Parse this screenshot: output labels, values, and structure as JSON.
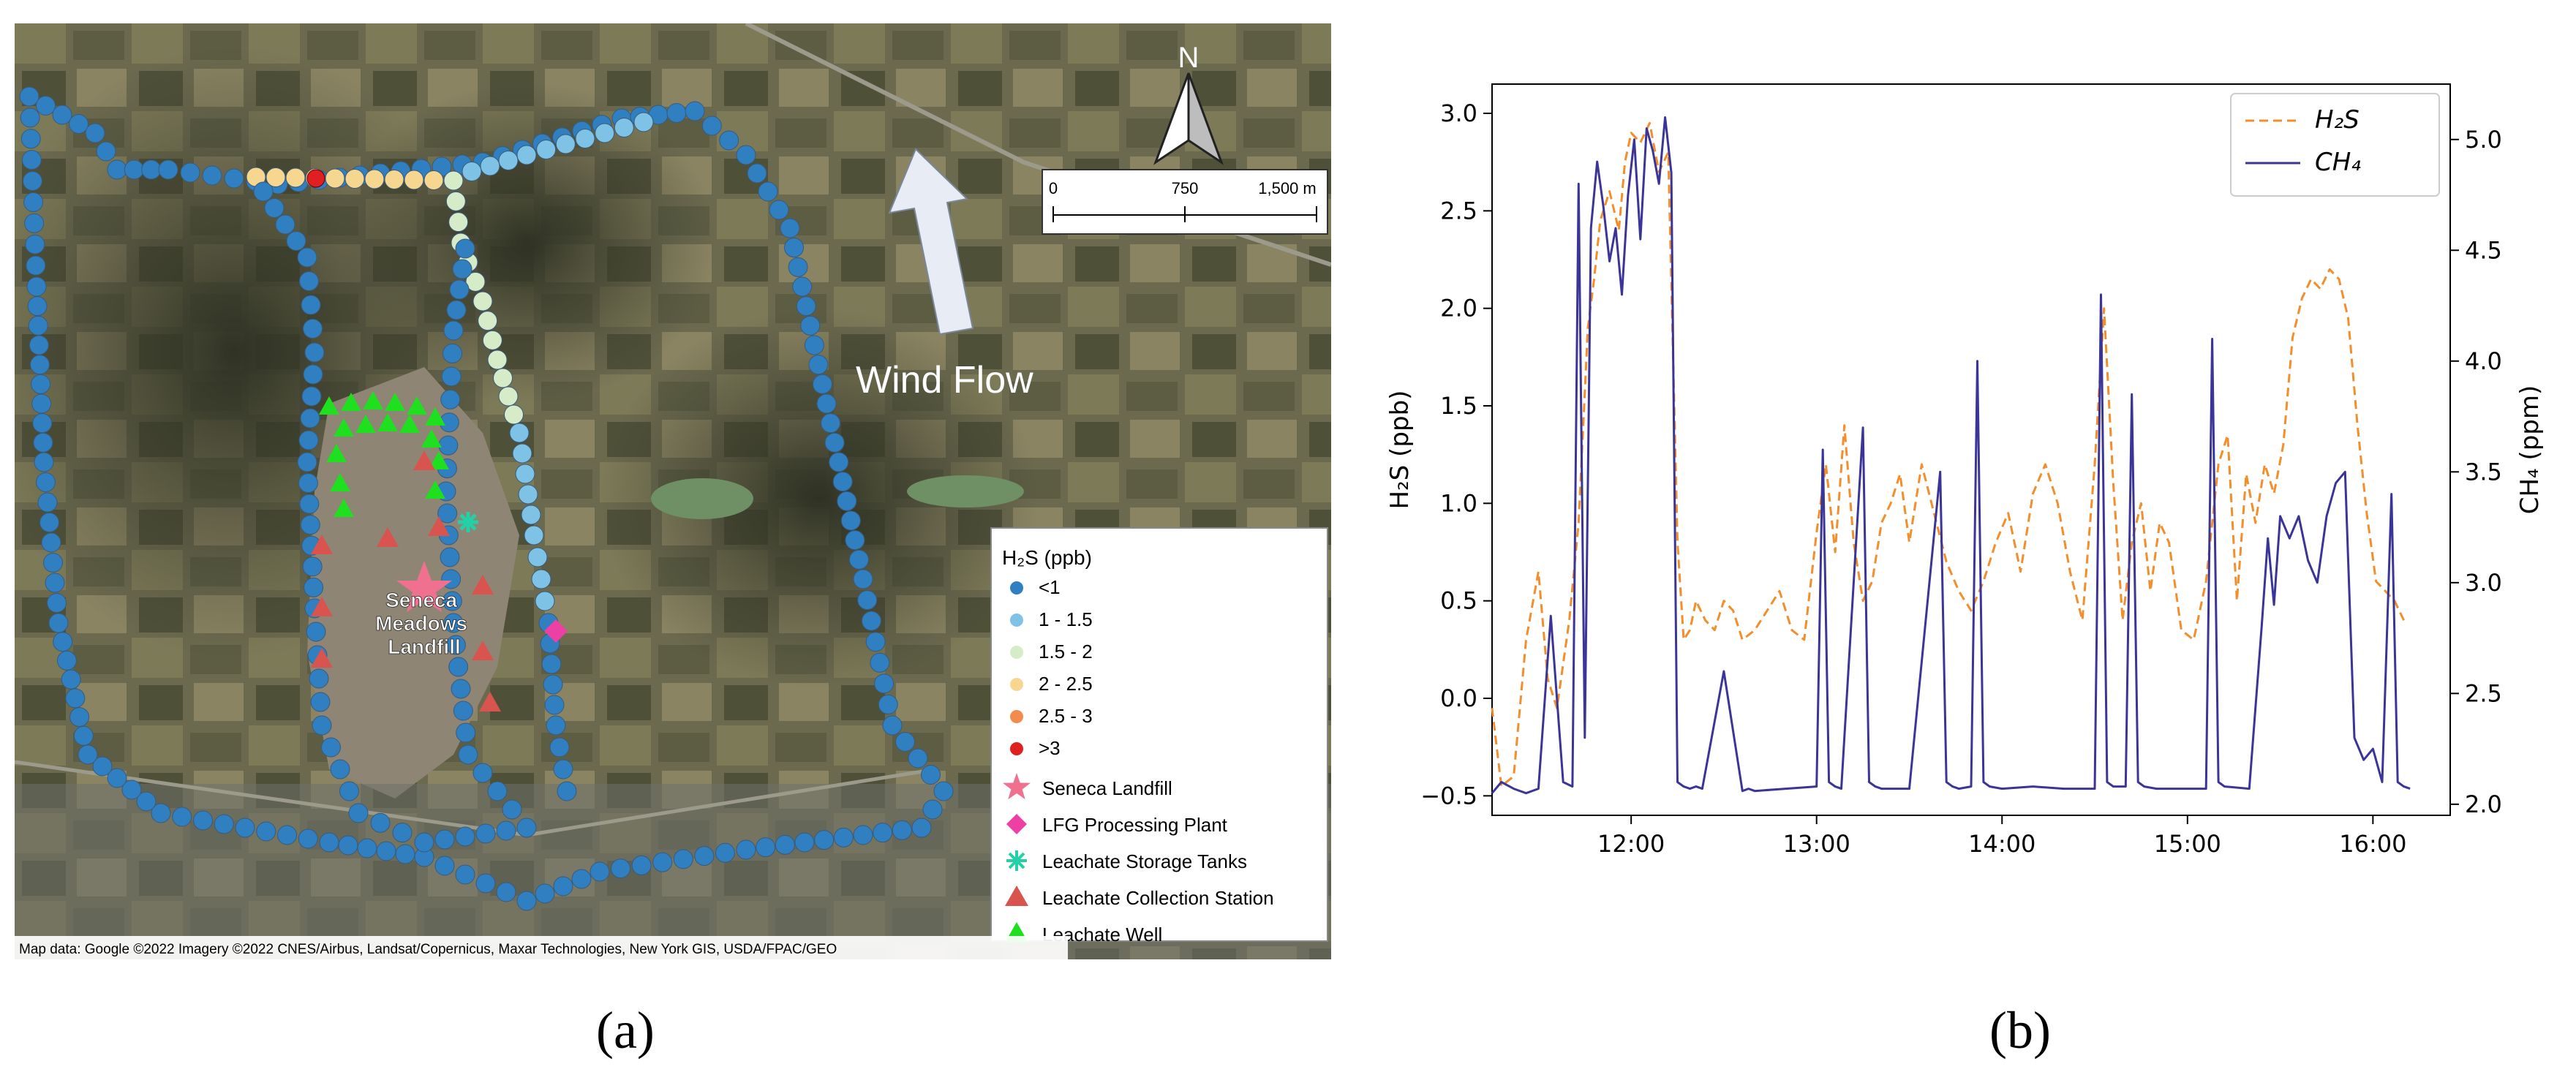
{
  "panel_labels": {
    "a": "(a)",
    "b": "(b)"
  },
  "map": {
    "background_colors": {
      "farmland": "#6b6a4f",
      "dark_fields": "#3c3d2d",
      "landfill": "#8e8574"
    },
    "north_arrow_label": "N",
    "scale_bar": {
      "ticks": [
        "0",
        "750",
        "1,500 m"
      ]
    },
    "wind_label": "Wind Flow",
    "landfill_label_lines": [
      "Seneca",
      "Meadows",
      "Landfill"
    ],
    "attribution": "Map data: Google ©2022 Imagery ©2022 CNES/Airbus, Landsat/Copernicus, Maxar Technologies, New York GIS, USDA/FPAC/GEO",
    "legend": {
      "title": "H₂S (ppb)",
      "classes": [
        {
          "label": "<1",
          "color": "#2f7fc1"
        },
        {
          "label": "1 - 1.5",
          "color": "#7ec3e6"
        },
        {
          "label": "1.5 - 2",
          "color": "#d6ebc8"
        },
        {
          "label": "2 - 2.5",
          "color": "#f7d790"
        },
        {
          "label": "2.5 - 3",
          "color": "#f28b4d"
        },
        {
          "label": ">3",
          "color": "#e02020"
        }
      ],
      "symbols": [
        {
          "label": "Seneca Landfill",
          "icon": "star-icon",
          "color": "#f07090"
        },
        {
          "label": "LFG Processing Plant",
          "icon": "diamond-icon",
          "color": "#ee3fa5"
        },
        {
          "label": "Leachate Storage Tanks",
          "icon": "asterisk-icon",
          "color": "#24d0a8"
        },
        {
          "label": "Leachate Collection Station",
          "icon": "triangle-icon",
          "color": "#d9534f"
        },
        {
          "label": "Leachate Well",
          "icon": "triangle-icon",
          "color": "#1ee01e"
        }
      ]
    }
  },
  "chart_data": {
    "type": "line",
    "xlabel": "",
    "ylabel": "H₂S (ppb)",
    "y2label": "CH₄ (ppm)",
    "xlim": [
      "11:15",
      "16:25"
    ],
    "ylim": [
      -0.6,
      3.15
    ],
    "y2lim": [
      1.95,
      5.25
    ],
    "xticks": [
      "12:00",
      "13:00",
      "14:00",
      "15:00",
      "16:00"
    ],
    "yticks": [
      "−0.5",
      "0.0",
      "0.5",
      "1.0",
      "1.5",
      "2.0",
      "2.5",
      "3.0"
    ],
    "y2ticks": [
      "2.0",
      "2.5",
      "3.0",
      "3.5",
      "4.0",
      "4.5",
      "5.0"
    ],
    "legend_position": "top-right",
    "series": [
      {
        "name": "H₂S",
        "axis": "left",
        "color": "#f28e2b",
        "style": "dashed",
        "x": [
          "11:15",
          "11:18",
          "11:22",
          "11:26",
          "11:30",
          "11:33",
          "11:36",
          "11:40",
          "11:43",
          "11:46",
          "11:48",
          "11:50",
          "11:53",
          "11:56",
          "11:58",
          "12:00",
          "12:03",
          "12:06",
          "12:09",
          "12:12",
          "12:15",
          "12:17",
          "12:19",
          "12:21",
          "12:24",
          "12:27",
          "12:30",
          "12:33",
          "12:36",
          "12:40",
          "12:44",
          "12:48",
          "12:52",
          "12:56",
          "13:00",
          "13:03",
          "13:06",
          "13:09",
          "13:12",
          "13:15",
          "13:18",
          "13:21",
          "13:24",
          "13:27",
          "13:30",
          "13:34",
          "13:38",
          "13:42",
          "13:46",
          "13:50",
          "13:54",
          "13:58",
          "14:02",
          "14:06",
          "14:10",
          "14:14",
          "14:18",
          "14:22",
          "14:26",
          "14:30",
          "14:33",
          "14:36",
          "14:39",
          "14:42",
          "14:45",
          "14:48",
          "14:51",
          "14:54",
          "14:58",
          "15:02",
          "15:06",
          "15:10",
          "15:13",
          "15:16",
          "15:19",
          "15:22",
          "15:25",
          "15:28",
          "15:31",
          "15:34",
          "15:37",
          "15:40",
          "15:43",
          "15:46",
          "15:49",
          "15:52",
          "15:55",
          "15:58",
          "16:01",
          "16:04",
          "16:07",
          "16:10"
        ],
        "values": [
          -0.05,
          -0.45,
          -0.4,
          0.3,
          0.65,
          0.1,
          -0.05,
          0.4,
          0.9,
          1.9,
          2.15,
          2.45,
          2.6,
          2.4,
          2.75,
          2.9,
          2.85,
          2.95,
          2.7,
          2.8,
          0.8,
          0.3,
          0.35,
          0.5,
          0.4,
          0.35,
          0.5,
          0.45,
          0.3,
          0.35,
          0.45,
          0.55,
          0.35,
          0.3,
          0.85,
          1.2,
          0.75,
          1.4,
          0.8,
          0.5,
          0.6,
          0.9,
          1.0,
          1.15,
          0.8,
          1.2,
          0.95,
          0.7,
          0.55,
          0.45,
          0.6,
          0.8,
          0.95,
          0.65,
          1.05,
          1.2,
          1.0,
          0.65,
          0.4,
          1.2,
          2.0,
          1.1,
          0.4,
          0.8,
          1.0,
          0.55,
          0.9,
          0.8,
          0.35,
          0.3,
          0.6,
          1.2,
          1.35,
          0.5,
          1.15,
          0.9,
          1.2,
          1.05,
          1.3,
          1.85,
          2.05,
          2.15,
          2.1,
          2.2,
          2.15,
          1.95,
          1.4,
          0.95,
          0.6,
          0.55,
          0.5,
          0.4
        ]
      },
      {
        "name": "CH₄",
        "axis": "right",
        "color": "#3a3596",
        "style": "solid",
        "x": [
          "11:15",
          "11:18",
          "11:22",
          "11:26",
          "11:30",
          "11:34",
          "11:38",
          "11:41",
          "11:43",
          "11:45",
          "11:47",
          "11:49",
          "11:51",
          "11:53",
          "11:55",
          "11:57",
          "11:59",
          "12:01",
          "12:03",
          "12:05",
          "12:07",
          "12:09",
          "12:11",
          "12:13",
          "12:15",
          "12:17",
          "12:19",
          "12:21",
          "12:23",
          "12:30",
          "12:36",
          "12:38",
          "12:40",
          "12:50",
          "13:00",
          "13:02",
          "13:04",
          "13:06",
          "13:08",
          "13:15",
          "13:17",
          "13:19",
          "13:21",
          "13:30",
          "13:40",
          "13:42",
          "13:44",
          "13:46",
          "13:50",
          "13:52",
          "13:54",
          "13:56",
          "14:00",
          "14:10",
          "14:20",
          "14:30",
          "14:32",
          "14:34",
          "14:36",
          "14:40",
          "14:42",
          "14:44",
          "14:46",
          "14:50",
          "15:00",
          "15:06",
          "15:08",
          "15:10",
          "15:12",
          "15:20",
          "15:24",
          "15:26",
          "15:28",
          "15:30",
          "15:33",
          "15:36",
          "15:39",
          "15:42",
          "15:45",
          "15:48",
          "15:51",
          "15:54",
          "15:57",
          "16:00",
          "16:03",
          "16:06",
          "16:08",
          "16:10",
          "16:12"
        ],
        "values": [
          2.05,
          2.1,
          2.07,
          2.05,
          2.07,
          2.85,
          2.1,
          2.08,
          4.8,
          2.3,
          4.6,
          4.9,
          4.7,
          4.45,
          4.6,
          4.3,
          4.75,
          5.0,
          4.55,
          5.05,
          4.95,
          4.8,
          5.1,
          4.85,
          2.1,
          2.08,
          2.07,
          2.08,
          2.07,
          2.6,
          2.06,
          2.07,
          2.06,
          2.07,
          2.08,
          3.6,
          2.1,
          2.08,
          2.07,
          3.7,
          2.1,
          2.08,
          2.07,
          2.07,
          3.5,
          2.1,
          2.08,
          2.07,
          2.08,
          4.0,
          2.1,
          2.08,
          2.07,
          2.08,
          2.07,
          2.07,
          4.3,
          2.1,
          2.08,
          2.08,
          3.85,
          2.1,
          2.08,
          2.07,
          2.07,
          2.07,
          4.1,
          2.1,
          2.08,
          2.07,
          2.8,
          3.2,
          2.9,
          3.3,
          3.2,
          3.3,
          3.1,
          3.0,
          3.3,
          3.45,
          3.5,
          2.3,
          2.2,
          2.25,
          2.1,
          3.4,
          2.1,
          2.08,
          2.07
        ]
      }
    ]
  }
}
